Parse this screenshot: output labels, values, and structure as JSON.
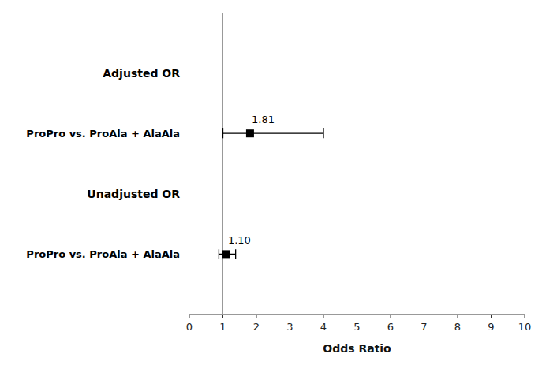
{
  "chart_data": {
    "type": "forest",
    "xlabel": "Odds Ratio",
    "xlim": [
      0,
      10
    ],
    "xticks": [
      0,
      1,
      2,
      3,
      4,
      5,
      6,
      7,
      8,
      9,
      10
    ],
    "reference_line": {
      "value": 1.0,
      "color": "#999999"
    },
    "sections": [
      "Adjusted OR",
      "Unadjusted OR"
    ],
    "categories": [
      "ProPro vs. ProAla + AlaAla",
      "ProPro vs. ProAla + AlaAla"
    ],
    "values": [
      1.81,
      1.1
    ],
    "value_labels": [
      "1.81",
      "1.10"
    ],
    "ci_low": [
      1.0,
      0.88
    ],
    "ci_high": [
      4.0,
      1.38
    ],
    "color": "black",
    "data_labels": true
  }
}
